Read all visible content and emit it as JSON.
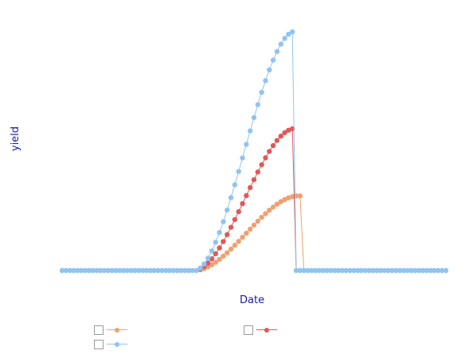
{
  "chart_data": {
    "type": "line",
    "title": "",
    "xlabel": "Date",
    "ylabel": "yield",
    "grid": false,
    "legend_position": "bottom",
    "x_start_index": 0,
    "x_end_index": 100,
    "series": [
      {
        "name": "",
        "color": "#f0a070",
        "peak_value": 0.3,
        "start_index": 35,
        "peak_index": 61,
        "end_index": 62
      },
      {
        "name": "",
        "color": "#e05858",
        "peak_value": 0.57,
        "start_index": 35,
        "peak_index": 60,
        "end_index": 60
      },
      {
        "name": "",
        "color": "#90c4f0",
        "peak_value": 0.96,
        "start_index": 35,
        "peak_index": 60,
        "end_index": 60
      }
    ]
  },
  "labels": {
    "x": "Date",
    "y": "yield"
  }
}
